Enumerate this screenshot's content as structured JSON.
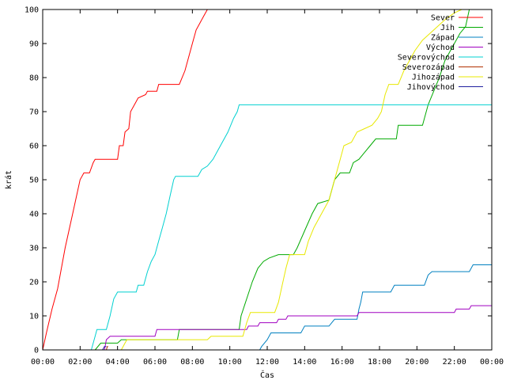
{
  "chart_data": {
    "type": "line",
    "title": "",
    "xlabel": "Čas",
    "ylabel": "krát",
    "x_unit": "hour",
    "xlim": [
      0,
      24
    ],
    "ylim": [
      0,
      100
    ],
    "x_ticks": [
      "00:00",
      "02:00",
      "04:00",
      "06:00",
      "08:00",
      "10:00",
      "12:00",
      "14:00",
      "16:00",
      "18:00",
      "20:00",
      "22:00",
      "00:00"
    ],
    "y_ticks": [
      0,
      10,
      20,
      30,
      40,
      50,
      60,
      70,
      80,
      90,
      100
    ],
    "grid": false,
    "legend_position": "top-right",
    "series": [
      {
        "name": "Sever",
        "color": "#ff0000",
        "points": [
          [
            0,
            0
          ],
          [
            0.2,
            5
          ],
          [
            0.5,
            12
          ],
          [
            0.8,
            18
          ],
          [
            1.2,
            30
          ],
          [
            1.6,
            40
          ],
          [
            2.0,
            50
          ],
          [
            2.2,
            52
          ],
          [
            2.5,
            52
          ],
          [
            2.7,
            55
          ],
          [
            2.8,
            56
          ],
          [
            3.5,
            56
          ],
          [
            4.0,
            56
          ],
          [
            4.1,
            60
          ],
          [
            4.3,
            60
          ],
          [
            4.4,
            64
          ],
          [
            4.6,
            65
          ],
          [
            4.7,
            70
          ],
          [
            4.9,
            72
          ],
          [
            5.1,
            74
          ],
          [
            5.5,
            75
          ],
          [
            5.6,
            76
          ],
          [
            6.1,
            76
          ],
          [
            6.2,
            78
          ],
          [
            7.3,
            78
          ],
          [
            7.6,
            82
          ],
          [
            7.8,
            86
          ],
          [
            8.0,
            90
          ],
          [
            8.2,
            94
          ],
          [
            8.4,
            96
          ],
          [
            8.6,
            98
          ],
          [
            8.8,
            100
          ]
        ]
      },
      {
        "name": "Jih",
        "color": "#00aa00",
        "points": [
          [
            2.8,
            0
          ],
          [
            3.1,
            2
          ],
          [
            4.0,
            2
          ],
          [
            4.2,
            3
          ],
          [
            7.2,
            3
          ],
          [
            7.3,
            6
          ],
          [
            10.5,
            6
          ],
          [
            10.6,
            10
          ],
          [
            10.9,
            15
          ],
          [
            11.2,
            20
          ],
          [
            11.5,
            24
          ],
          [
            11.8,
            26
          ],
          [
            12.1,
            27
          ],
          [
            12.6,
            28
          ],
          [
            13.4,
            28
          ],
          [
            13.6,
            30
          ],
          [
            14.0,
            35
          ],
          [
            14.4,
            40
          ],
          [
            14.7,
            43
          ],
          [
            15.3,
            44
          ],
          [
            15.6,
            50
          ],
          [
            15.9,
            52
          ],
          [
            16.4,
            52
          ],
          [
            16.6,
            55
          ],
          [
            16.9,
            56
          ],
          [
            17.2,
            58
          ],
          [
            17.5,
            60
          ],
          [
            17.8,
            62
          ],
          [
            18.9,
            62
          ],
          [
            19.0,
            66
          ],
          [
            20.3,
            66
          ],
          [
            20.6,
            72
          ],
          [
            20.9,
            76
          ],
          [
            21.2,
            80
          ],
          [
            21.5,
            85
          ],
          [
            21.9,
            89
          ],
          [
            22.3,
            93
          ],
          [
            22.6,
            95
          ],
          [
            22.8,
            100
          ]
        ]
      },
      {
        "name": "Západ",
        "color": "#0080c0",
        "points": [
          [
            11.6,
            0
          ],
          [
            11.7,
            1
          ],
          [
            12.0,
            3
          ],
          [
            12.2,
            5
          ],
          [
            13.8,
            5
          ],
          [
            14.0,
            7
          ],
          [
            15.3,
            7
          ],
          [
            15.6,
            9
          ],
          [
            16.8,
            9
          ],
          [
            16.9,
            12
          ],
          [
            17.0,
            14
          ],
          [
            17.1,
            17
          ],
          [
            18.6,
            17
          ],
          [
            18.8,
            19
          ],
          [
            20.4,
            19
          ],
          [
            20.6,
            22
          ],
          [
            20.8,
            23
          ],
          [
            22.8,
            23
          ],
          [
            22.9,
            24
          ],
          [
            23.0,
            25
          ],
          [
            24,
            25
          ]
        ]
      },
      {
        "name": "Východ",
        "color": "#a000c0",
        "points": [
          [
            3.3,
            0
          ],
          [
            3.4,
            3
          ],
          [
            3.6,
            4
          ],
          [
            6.0,
            4
          ],
          [
            6.1,
            6
          ],
          [
            9.8,
            6
          ],
          [
            10.0,
            6
          ],
          [
            10.9,
            6
          ],
          [
            11.0,
            7
          ],
          [
            11.5,
            7
          ],
          [
            11.6,
            8
          ],
          [
            12.5,
            8
          ],
          [
            12.6,
            9
          ],
          [
            13.0,
            9
          ],
          [
            13.1,
            10
          ],
          [
            16.8,
            10
          ],
          [
            16.9,
            11
          ],
          [
            22.0,
            11
          ],
          [
            22.1,
            12
          ],
          [
            22.8,
            12
          ],
          [
            22.9,
            13
          ],
          [
            24,
            13
          ]
        ]
      },
      {
        "name": "Severovýchod",
        "color": "#00d0d0",
        "points": [
          [
            2.6,
            0
          ],
          [
            2.8,
            4
          ],
          [
            2.9,
            6
          ],
          [
            3.4,
            6
          ],
          [
            3.6,
            10
          ],
          [
            3.8,
            15
          ],
          [
            4.0,
            17
          ],
          [
            5.0,
            17
          ],
          [
            5.1,
            19
          ],
          [
            5.4,
            19
          ],
          [
            5.6,
            23
          ],
          [
            5.8,
            26
          ],
          [
            6.0,
            28
          ],
          [
            6.2,
            32
          ],
          [
            6.4,
            36
          ],
          [
            6.6,
            40
          ],
          [
            6.8,
            45
          ],
          [
            7.0,
            50
          ],
          [
            7.1,
            51
          ],
          [
            8.3,
            51
          ],
          [
            8.5,
            53
          ],
          [
            8.8,
            54
          ],
          [
            9.1,
            56
          ],
          [
            9.5,
            60
          ],
          [
            9.9,
            64
          ],
          [
            10.2,
            68
          ],
          [
            10.4,
            70
          ],
          [
            10.5,
            72
          ],
          [
            24,
            72
          ]
        ]
      },
      {
        "name": "Severozápad",
        "color": "#b03000",
        "points": [
          [
            3.4,
            0
          ],
          [
            3.45,
            1
          ],
          [
            3.5,
            1
          ]
        ]
      },
      {
        "name": "Jihozápad",
        "color": "#e8e800",
        "points": [
          [
            4.2,
            0
          ],
          [
            4.4,
            2
          ],
          [
            4.5,
            3
          ],
          [
            8.8,
            3
          ],
          [
            9.0,
            4
          ],
          [
            10.5,
            4
          ],
          [
            10.7,
            4
          ],
          [
            10.9,
            8
          ],
          [
            11.1,
            11
          ],
          [
            12.4,
            11
          ],
          [
            12.6,
            14
          ],
          [
            12.8,
            19
          ],
          [
            13.0,
            24
          ],
          [
            13.2,
            28
          ],
          [
            14.0,
            28
          ],
          [
            14.2,
            32
          ],
          [
            14.5,
            36
          ],
          [
            14.8,
            39
          ],
          [
            15.1,
            42
          ],
          [
            15.3,
            44
          ],
          [
            15.6,
            50
          ],
          [
            15.9,
            56
          ],
          [
            16.1,
            60
          ],
          [
            16.5,
            61
          ],
          [
            16.8,
            64
          ],
          [
            17.2,
            65
          ],
          [
            17.6,
            66
          ],
          [
            17.9,
            68
          ],
          [
            18.1,
            70
          ],
          [
            18.3,
            75
          ],
          [
            18.5,
            78
          ],
          [
            19.0,
            78
          ],
          [
            19.3,
            82
          ],
          [
            19.6,
            85
          ],
          [
            19.9,
            88
          ],
          [
            20.3,
            91
          ],
          [
            20.7,
            93
          ],
          [
            21.1,
            95
          ],
          [
            21.5,
            97
          ],
          [
            22.0,
            99
          ],
          [
            22.4,
            100
          ]
        ]
      },
      {
        "name": "Jihovýchod",
        "color": "#2020a0",
        "points": [
          [
            3.2,
            0
          ],
          [
            3.3,
            1
          ],
          [
            3.4,
            1
          ]
        ]
      }
    ]
  }
}
